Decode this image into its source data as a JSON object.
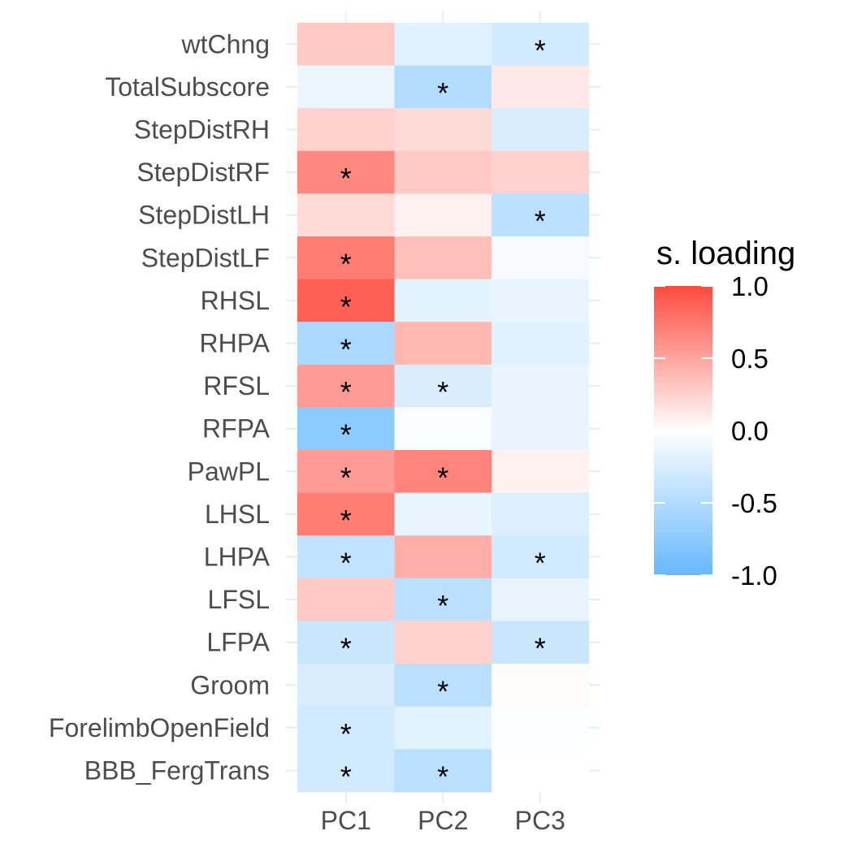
{
  "chart_data": {
    "type": "heatmap",
    "title": "",
    "xlabel": "",
    "ylabel": "",
    "columns": [
      "PC1",
      "PC2",
      "PC3"
    ],
    "rows": [
      "wtChng",
      "TotalSubscore",
      "StepDistRH",
      "StepDistRF",
      "StepDistLH",
      "StepDistLF",
      "RHSL",
      "RHPA",
      "RFSL",
      "RFPA",
      "PawPL",
      "LHSL",
      "LHPA",
      "LFSL",
      "LFPA",
      "Groom",
      "ForelimbOpenField",
      "BBB_FergTrans"
    ],
    "values": [
      [
        0.3,
        -0.2,
        -0.3
      ],
      [
        -0.12,
        -0.5,
        0.12
      ],
      [
        0.25,
        0.2,
        -0.25
      ],
      [
        0.65,
        0.3,
        0.25
      ],
      [
        0.2,
        0.08,
        -0.45
      ],
      [
        0.72,
        0.35,
        -0.05
      ],
      [
        0.88,
        -0.18,
        -0.15
      ],
      [
        -0.55,
        0.4,
        -0.2
      ],
      [
        0.55,
        -0.25,
        -0.15
      ],
      [
        -0.75,
        -0.03,
        -0.15
      ],
      [
        0.55,
        0.68,
        0.08
      ],
      [
        0.72,
        -0.15,
        -0.22
      ],
      [
        -0.4,
        0.45,
        -0.3
      ],
      [
        0.3,
        -0.45,
        -0.15
      ],
      [
        -0.35,
        0.25,
        -0.35
      ],
      [
        -0.25,
        -0.45,
        0.02
      ],
      [
        -0.3,
        -0.18,
        -0.02
      ],
      [
        -0.3,
        -0.45,
        0.0
      ]
    ],
    "significant": [
      [
        "",
        "",
        "*"
      ],
      [
        "",
        "*",
        ""
      ],
      [
        "",
        "",
        ""
      ],
      [
        "*",
        "",
        ""
      ],
      [
        "",
        "",
        "*"
      ],
      [
        "*",
        "",
        ""
      ],
      [
        "*",
        "",
        ""
      ],
      [
        "*",
        "",
        ""
      ],
      [
        "*",
        "*",
        ""
      ],
      [
        "*",
        "",
        ""
      ],
      [
        "*",
        "*",
        ""
      ],
      [
        "*",
        "",
        ""
      ],
      [
        "*",
        "",
        "*"
      ],
      [
        "",
        "*",
        ""
      ],
      [
        "*",
        "",
        "*"
      ],
      [
        "",
        "*",
        ""
      ],
      [
        "*",
        "",
        ""
      ],
      [
        "*",
        "*",
        ""
      ]
    ],
    "legend": {
      "title": "s. loading",
      "position": "right",
      "range": [
        -1,
        1
      ],
      "ticks": [
        "1.0",
        "0.5",
        "0.0",
        "-0.5",
        "-1.0"
      ],
      "tick_values": [
        1.0,
        0.5,
        0.0,
        -0.5,
        -1.0
      ],
      "color_low": "#66B8FF",
      "color_mid": "#FFFFFF",
      "color_high": "#FF4A3D"
    },
    "gridlines": true
  }
}
